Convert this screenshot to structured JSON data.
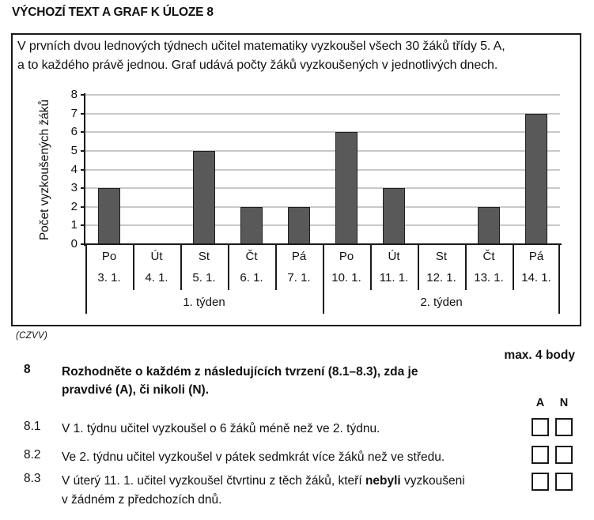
{
  "page_title": "VÝCHOZÍ TEXT A GRAF K ÚLOZE 8",
  "stimulus": {
    "text_line1": "V prvních dvou lednových týdnech učitel matematiky vyzkoušel všech 30 žáků třídy 5. A,",
    "text_line2": "a to každého právě jednou. Graf udává počty žáků vyzkoušených v jednotlivých dnech."
  },
  "chart_data": {
    "type": "bar",
    "ylabel": "Počet vyzkoušených žáků",
    "xlabel": "",
    "ylim": [
      0,
      8
    ],
    "ytick_step": 1,
    "grid": true,
    "bar_color": "#595959",
    "gridline_color": "#c9c9c9",
    "categories": [
      "Po",
      "Út",
      "St",
      "Čt",
      "Pá",
      "Po",
      "Út",
      "St",
      "Čt",
      "Pá"
    ],
    "dates": [
      "3. 1.",
      "4. 1.",
      "5. 1.",
      "6. 1.",
      "7. 1.",
      "10. 1.",
      "11. 1.",
      "12. 1.",
      "13. 1.",
      "14. 1."
    ],
    "values": [
      3,
      0,
      5,
      2,
      2,
      6,
      3,
      0,
      2,
      7
    ],
    "week_groups": [
      {
        "label": "1. týden",
        "span": [
          0,
          4
        ]
      },
      {
        "label": "2. týden",
        "span": [
          5,
          9
        ]
      }
    ]
  },
  "source": "(CZVV)",
  "max_points": "max. 4 body",
  "question": {
    "number": "8",
    "text_line1": "Rozhodněte o každém z následujících tvrzení (8.1–8.3), zda je",
    "text_line2": "pravdivé (A), či nikoli (N)."
  },
  "answer_header": {
    "yes": "A",
    "no": "N"
  },
  "statements": [
    {
      "number": "8.1",
      "text": "V 1. týdnu učitel vyzkoušel o 6 žáků méně než ve 2. týdnu."
    },
    {
      "number": "8.2",
      "text": "Ve 2. týdnu učitel vyzkoušel v pátek sedmkrát více žáků než ve středu."
    },
    {
      "number": "8.3",
      "text_before_bold": "V úterý 11. 1. učitel vyzkoušel čtvrtinu z těch žáků, kteří ",
      "bold": "nebyli",
      "text_after_bold": " vyzkoušeni",
      "text_line2": "v žádném z předchozích dnů."
    }
  ]
}
